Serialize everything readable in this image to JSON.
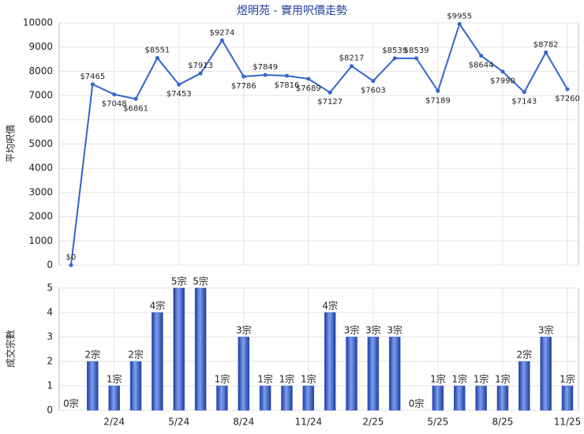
{
  "chart_data": [
    {
      "type": "line",
      "title": "煜明苑 - 實用呎價走勢",
      "y_label": "平均呎價",
      "series": [
        {
          "color": "#3366cc",
          "values": [
            0,
            7465,
            7048,
            6861,
            8551,
            7453,
            7913,
            9274,
            7786,
            7849,
            7816,
            7689,
            7127,
            8217,
            7603,
            8539,
            8539,
            7189,
            9955,
            8644,
            7990,
            7143,
            8782,
            7260
          ],
          "value_labels": [
            "$0",
            "$7465",
            "$7048",
            "$6861",
            "$8551",
            "$7453",
            "$7913",
            "$9274",
            "$7786",
            "$7849",
            "$7816",
            "$7689",
            "$7127",
            "$8217",
            "$7603",
            "$8539",
            "$8539",
            "$7189",
            "$9955",
            "$8644",
            "$7990",
            "$7143",
            "$8782",
            "$7260"
          ]
        }
      ],
      "ylim": [
        0,
        10000
      ],
      "yticks": [
        0,
        1000,
        2000,
        3000,
        4000,
        5000,
        6000,
        7000,
        8000,
        9000,
        10000
      ],
      "grid": true
    },
    {
      "type": "bar",
      "y_label": "成交宗數",
      "color": "#3a5fcd",
      "categories": [
        null,
        null,
        "2/24",
        null,
        null,
        "5/24",
        null,
        null,
        "8/24",
        null,
        null,
        "11/24",
        null,
        null,
        "2/25",
        null,
        null,
        "5/25",
        null,
        null,
        "8/25",
        null,
        null,
        "11/25"
      ],
      "values": [
        0,
        2,
        1,
        2,
        4,
        5,
        5,
        1,
        3,
        1,
        1,
        1,
        4,
        3,
        3,
        3,
        0,
        1,
        1,
        1,
        1,
        2,
        3,
        1
      ],
      "value_labels": [
        "0宗",
        "2宗",
        "1宗",
        "2宗",
        "4宗",
        "5宗",
        "5宗",
        "1宗",
        "3宗",
        "1宗",
        "1宗",
        "1宗",
        "4宗",
        "3宗",
        "3宗",
        "3宗",
        "0宗",
        "1宗",
        "1宗",
        "1宗",
        "1宗",
        "2宗",
        "3宗",
        "1宗"
      ],
      "ylim": [
        0,
        5
      ],
      "yticks": [
        0,
        1,
        2,
        3,
        4,
        5
      ],
      "grid": true
    }
  ]
}
